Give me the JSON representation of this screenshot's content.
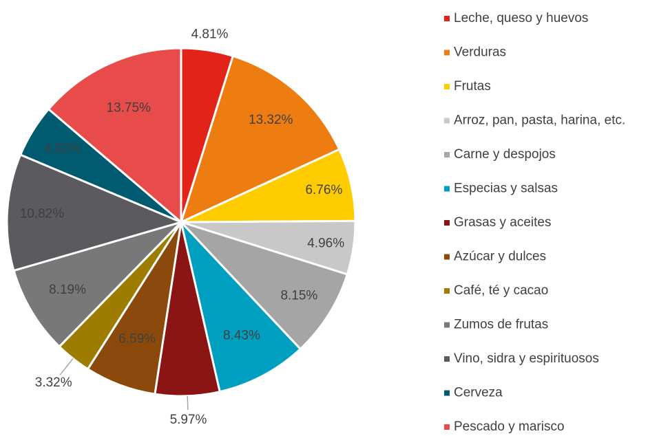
{
  "chart_data": {
    "type": "pie",
    "categories": [
      "Leche, queso y huevos",
      "Verduras",
      "Frutas",
      "Arroz, pan, pasta, harina, etc.",
      "Carne y despojos",
      "Especias y salsas",
      "Grasas y aceites",
      "Azúcar y dulces",
      "Café, té y cacao",
      "Zumos de frutas",
      "Vino, sidra y espirituosos",
      "Cerveza",
      "Pescado y marisco"
    ],
    "values": [
      4.81,
      13.32,
      6.76,
      4.96,
      8.15,
      8.43,
      5.97,
      6.59,
      3.32,
      8.19,
      10.82,
      4.92,
      13.75
    ],
    "value_labels": [
      "4.81%",
      "13.32%",
      "6.76%",
      "4.96%",
      "8.15%",
      "8.43%",
      "5.97%",
      "6.59%",
      "3.32%",
      "8.19%",
      "10.82%",
      "4.92%",
      "13.75%"
    ],
    "colors": [
      "#e2231a",
      "#ee7d11",
      "#ffcc00",
      "#c8c8c8",
      "#a5a5a5",
      "#009fc0",
      "#8b1414",
      "#8b4a0c",
      "#9e7c00",
      "#787878",
      "#5a5a5f",
      "#005a70",
      "#e84c4a"
    ],
    "legend": "right"
  }
}
